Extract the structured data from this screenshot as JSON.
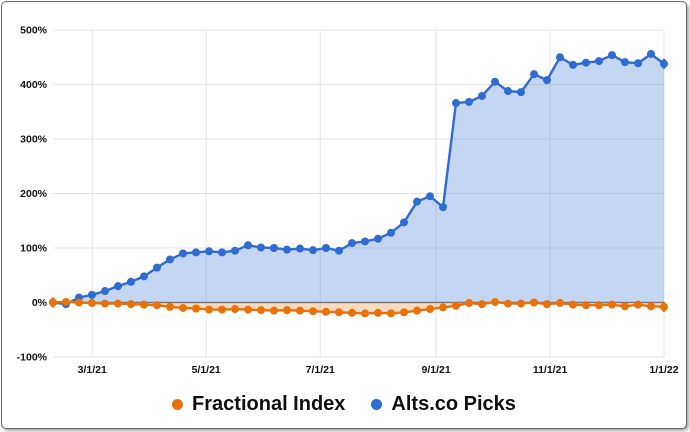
{
  "chart_data": {
    "type": "area",
    "title": "",
    "x_tick_labels": [
      "3/1/21",
      "5/1/21",
      "7/1/21",
      "9/1/21",
      "11/1/21",
      "1/1/22"
    ],
    "x_tick_weeks": [
      3.0,
      11.71,
      20.43,
      29.29,
      38.0,
      46.71
    ],
    "x_domain_weeks": [
      0,
      46.71
    ],
    "y_ticks": [
      500,
      400,
      300,
      200,
      100,
      0,
      -100
    ],
    "y_tick_suffix": "%",
    "ylim": [
      -100,
      500
    ],
    "grid": true,
    "legend_position": "bottom",
    "series": [
      {
        "name": "Fractional Index",
        "color": "#E8710A",
        "fill_opacity": 0.25,
        "values": [
          0,
          1,
          0,
          -1,
          -2,
          -2,
          -3,
          -4,
          -5,
          -8,
          -10,
          -11,
          -13,
          -13,
          -12,
          -13,
          -14,
          -15,
          -14,
          -15,
          -16,
          -17,
          -18,
          -19,
          -20,
          -19,
          -20,
          -18,
          -15,
          -12,
          -9,
          -6,
          -1,
          -3,
          1,
          -2,
          -2,
          0,
          -3,
          -1,
          -4,
          -5,
          -5,
          -4,
          -7,
          -4,
          -7,
          -8
        ]
      },
      {
        "name": "Alts.co Picks",
        "color": "#2E6BD3",
        "fill_opacity": 0.28,
        "values": [
          0,
          -3,
          9,
          14,
          21,
          30,
          38,
          48,
          64,
          79,
          90,
          92,
          94,
          92,
          95,
          105,
          101,
          100,
          97,
          99,
          96,
          100,
          95,
          109,
          112,
          117,
          128,
          147,
          185,
          195,
          175,
          366,
          368,
          379,
          405,
          388,
          386,
          419,
          408,
          450,
          436,
          440,
          443,
          454,
          441,
          439,
          456,
          438
        ]
      }
    ]
  },
  "colors": {
    "grid": "#e4e4e4",
    "baseline": "#7a7a7a",
    "axis_text": "#111111",
    "legend_text": "#0f0f0f",
    "card_border": "#6b6b6b",
    "background": "#ffffff"
  }
}
